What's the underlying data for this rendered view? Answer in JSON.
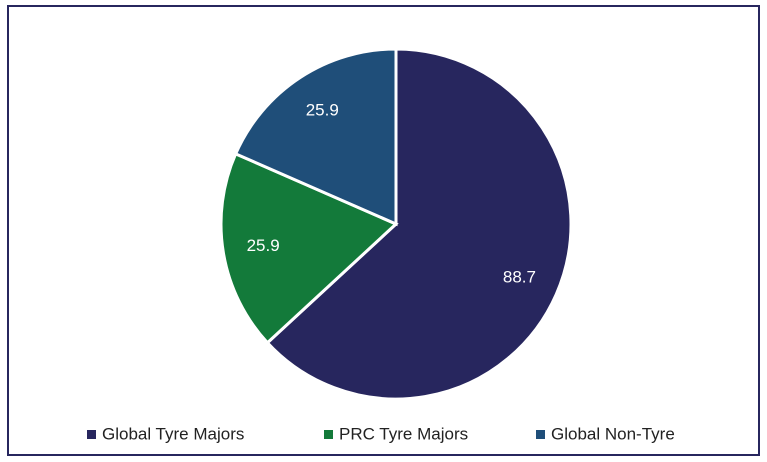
{
  "chart_data": {
    "type": "pie",
    "categories": [
      "Global Tyre Majors",
      "PRC Tyre Majors",
      "Global Non-Tyre"
    ],
    "values": [
      88.7,
      25.9,
      25.9
    ],
    "colors": [
      "#27265e",
      "#137a3a",
      "#1f4e79"
    ],
    "legend": "bottom"
  }
}
